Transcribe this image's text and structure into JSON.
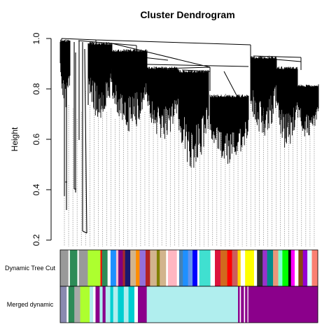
{
  "title": "Cluster Dendrogram",
  "axis": {
    "ylabel": "Height",
    "ticks": [
      0.2,
      0.4,
      0.6,
      0.8,
      1.0
    ],
    "tick_labels": [
      "0.2",
      "0.4",
      "0.6",
      "0.8",
      "1.0"
    ],
    "range": [
      0.2,
      1.0
    ]
  },
  "color_rows": [
    {
      "label": "Dynamic Tree Cut",
      "segments": [
        {
          "w": 2.2,
          "color": "#999999"
        },
        {
          "w": 0.4,
          "color": "#ffffff"
        },
        {
          "w": 2.0,
          "color": "#2e8b57"
        },
        {
          "w": 0.4,
          "color": "#ffffff"
        },
        {
          "w": 2.4,
          "color": "#999999"
        },
        {
          "w": 3.4,
          "color": "#adff2f"
        },
        {
          "w": 0.4,
          "color": "#ff0000"
        },
        {
          "w": 1.5,
          "color": "#2e8b57"
        },
        {
          "w": 0.8,
          "color": "#ffffff"
        },
        {
          "w": 1.5,
          "color": "#1e90ff"
        },
        {
          "w": 0.6,
          "color": "#ffc0cb"
        },
        {
          "w": 1.2,
          "color": "#800080"
        },
        {
          "w": 0.6,
          "color": "#a52a2a"
        },
        {
          "w": 1.4,
          "color": "#191970"
        },
        {
          "w": 1.5,
          "color": "#d2b48c"
        },
        {
          "w": 1.0,
          "color": "#ff8c00"
        },
        {
          "w": 1.6,
          "color": "#9370db"
        },
        {
          "w": 1.2,
          "color": "#b22222"
        },
        {
          "w": 1.8,
          "color": "#d2b48c"
        },
        {
          "w": 0.8,
          "color": "#808000"
        },
        {
          "w": 1.7,
          "color": "#d2b48c"
        },
        {
          "w": 0.5,
          "color": "#ffffff"
        },
        {
          "w": 2.4,
          "color": "#ffb6c1"
        },
        {
          "w": 0.6,
          "color": "#ffffff"
        },
        {
          "w": 1.0,
          "color": "#4682b4"
        },
        {
          "w": 1.4,
          "color": "#1e90ff"
        },
        {
          "w": 1.2,
          "color": "#6495ed"
        },
        {
          "w": 1.3,
          "color": "#0000ff"
        },
        {
          "w": 0.5,
          "color": "#ffffff"
        },
        {
          "w": 3.0,
          "color": "#40e0d0"
        },
        {
          "w": 1.2,
          "color": "#ffffff"
        },
        {
          "w": 1.5,
          "color": "#dc143c"
        },
        {
          "w": 1.8,
          "color": "#d2691e"
        },
        {
          "w": 1.3,
          "color": "#ff0000"
        },
        {
          "w": 1.5,
          "color": "#cd5c5c"
        },
        {
          "w": 0.8,
          "color": "#ffd700"
        },
        {
          "w": 1.2,
          "color": "#ffffff"
        },
        {
          "w": 2.4,
          "color": "#ffff00"
        },
        {
          "w": 0.8,
          "color": "#ffffff"
        },
        {
          "w": 1.5,
          "color": "#2f2f2f"
        },
        {
          "w": 1.2,
          "color": "#9932cc"
        },
        {
          "w": 1.6,
          "color": "#008b8b"
        },
        {
          "w": 1.4,
          "color": "#e9967a"
        },
        {
          "w": 1.1,
          "color": "#7fffd4"
        },
        {
          "w": 1.6,
          "color": "#00ff00"
        },
        {
          "w": 0.7,
          "color": "#000000"
        },
        {
          "w": 1.0,
          "color": "#ff00ff"
        },
        {
          "w": 1.0,
          "color": "#ffffff"
        },
        {
          "w": 1.2,
          "color": "#8b4513"
        },
        {
          "w": 1.2,
          "color": "#9400d3"
        },
        {
          "w": 1.2,
          "color": "#e0ffff"
        },
        {
          "w": 1.6,
          "color": "#fa8072"
        }
      ]
    },
    {
      "label": "Merged dynamic",
      "segments": [
        {
          "w": 2.2,
          "color": "#8a8ab0"
        },
        {
          "w": 0.6,
          "color": "#ffffff"
        },
        {
          "w": 2.0,
          "color": "#2e8b57"
        },
        {
          "w": 2.0,
          "color": "#a9a9a9"
        },
        {
          "w": 3.2,
          "color": "#adff2f"
        },
        {
          "w": 1.2,
          "color": "#b0eeee"
        },
        {
          "w": 0.8,
          "color": "#ffffff"
        },
        {
          "w": 1.4,
          "color": "#8b008b"
        },
        {
          "w": 1.0,
          "color": "#b0eeee"
        },
        {
          "w": 1.0,
          "color": "#8b008b"
        },
        {
          "w": 1.6,
          "color": "#b0eeee"
        },
        {
          "w": 1.0,
          "color": "#00ced1"
        },
        {
          "w": 1.6,
          "color": "#b0eeee"
        },
        {
          "w": 2.0,
          "color": "#00ced1"
        },
        {
          "w": 1.6,
          "color": "#b0eeee"
        },
        {
          "w": 2.0,
          "color": "#00ced1"
        },
        {
          "w": 1.2,
          "color": "#ffffff"
        },
        {
          "w": 3.0,
          "color": "#8b008b"
        },
        {
          "w": 31.0,
          "color": "#b0eeee"
        },
        {
          "w": 0.6,
          "color": "#8b008b"
        },
        {
          "w": 0.4,
          "color": "#ffffff"
        },
        {
          "w": 1.0,
          "color": "#8b008b"
        },
        {
          "w": 0.4,
          "color": "#ffffff"
        },
        {
          "w": 0.8,
          "color": "#8b008b"
        },
        {
          "w": 0.3,
          "color": "#ffffff"
        },
        {
          "w": 23.6,
          "color": "#8b008b"
        }
      ]
    }
  ]
}
